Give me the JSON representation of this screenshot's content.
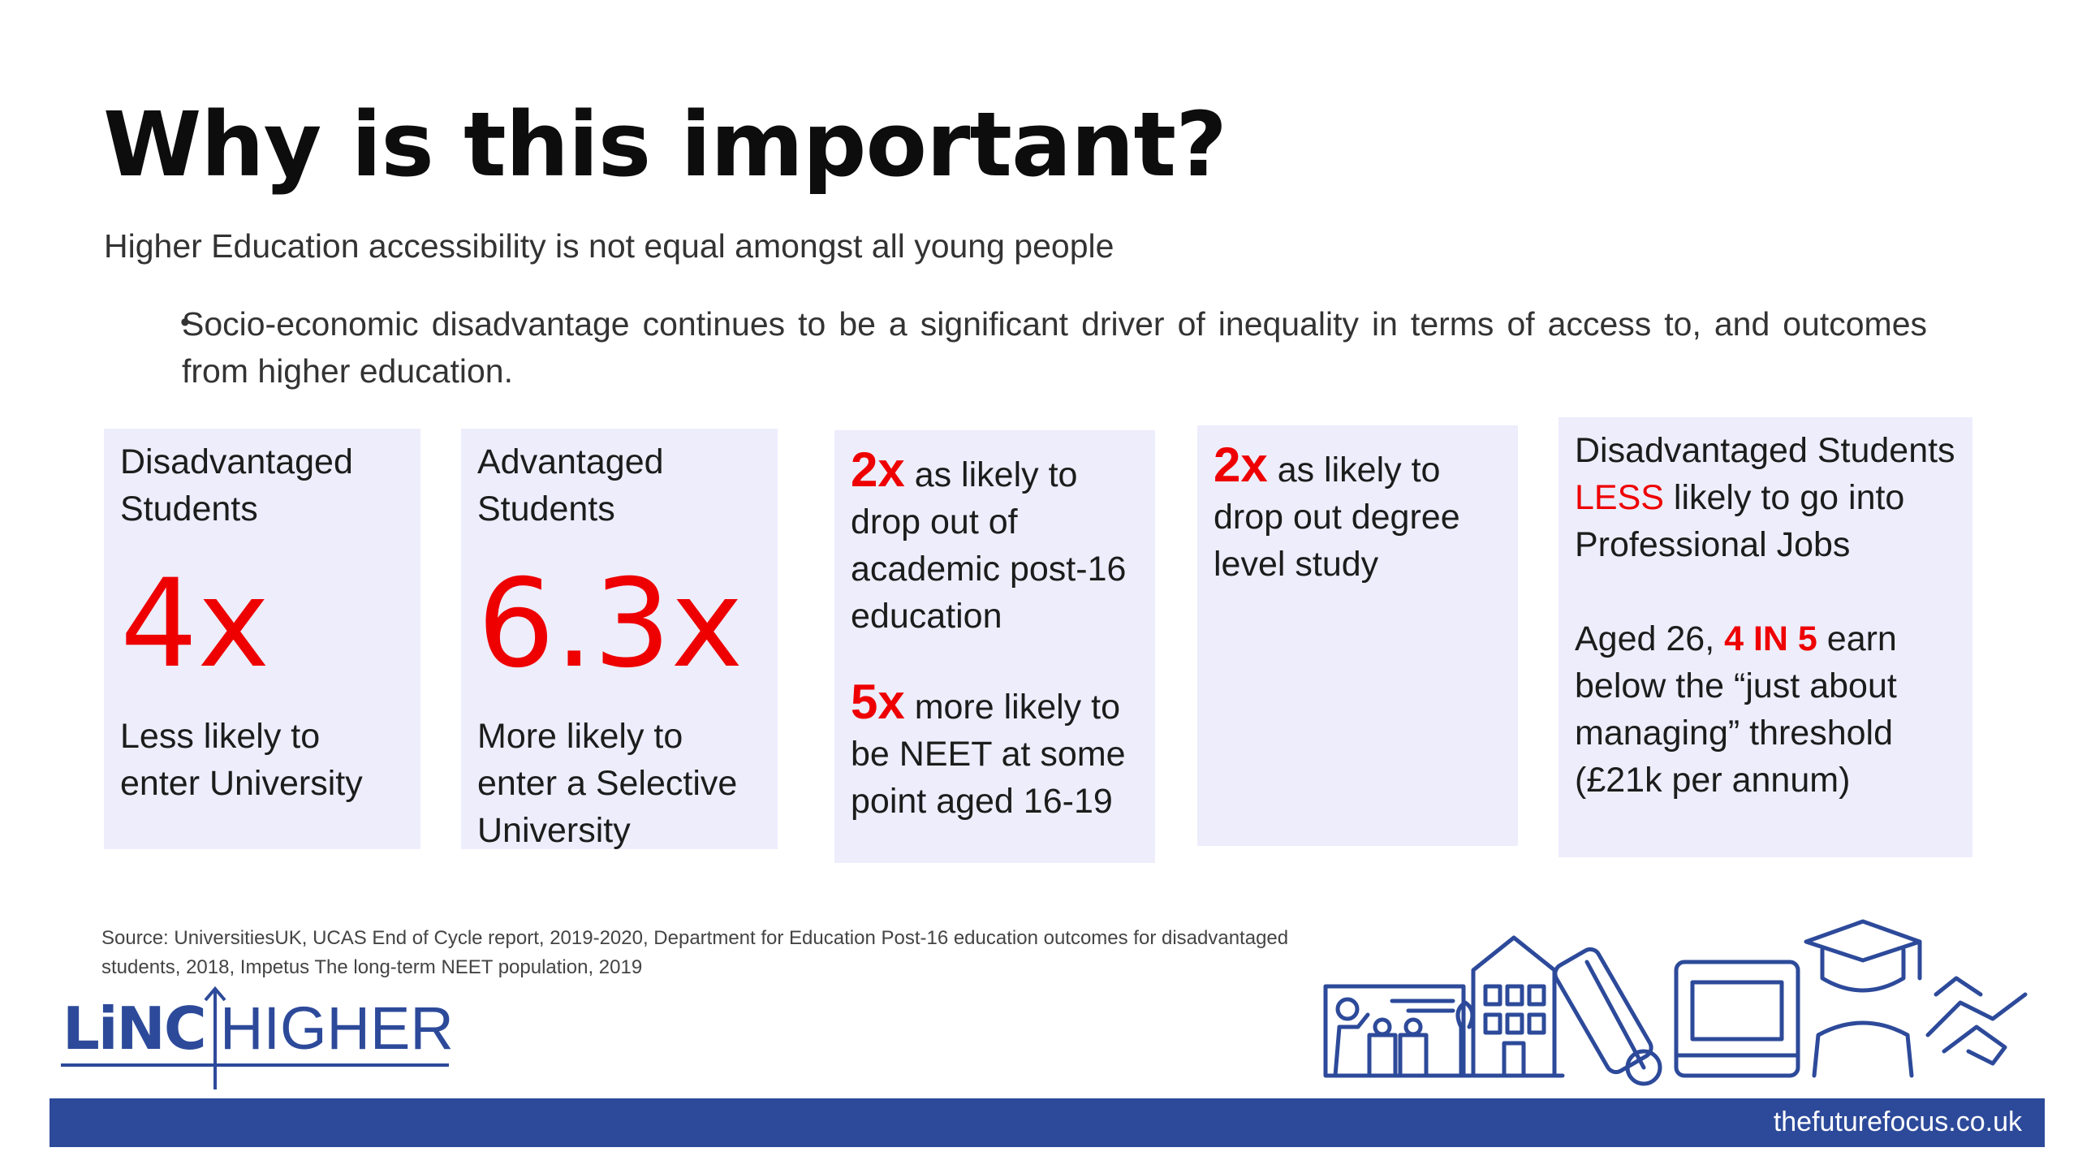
{
  "title": "Why is this important?",
  "subtitle": "Higher Education accessibility is not equal amongst all young people",
  "bullet": "Socio-economic disadvantage continues to be a significant driver of inequality in terms of access to, and outcomes from higher education.",
  "cards": [
    {
      "heading": "Disadvantaged Students",
      "figure": "4x",
      "caption": "Less likely to enter University"
    },
    {
      "heading": "Advantaged Students",
      "figure": "6.3x",
      "caption": "More likely to enter a Selective University"
    },
    {
      "stat1_mult": "2x",
      "stat1_text": " as likely to",
      "stat1_rest": "drop out of academic post-16 education",
      "stat2_mult": "5x",
      "stat2_text": " more likely to",
      "stat2_rest": "be NEET at some point aged 16-19"
    },
    {
      "mult": "2x",
      "text": " as likely to",
      "rest": "drop out degree level study"
    },
    {
      "line_a": "Disadvantaged Students ",
      "less": "LESS",
      "line_b": " likely to go into Professional Jobs",
      "aged": "Aged 26, ",
      "ratio": "4 IN 5",
      "aged_rest": " earn below the “just about managing” threshold (£21k per annum)"
    }
  ],
  "source": "Source: UniversitiesUK, UCAS End of Cycle report, 2019-2020, Department for Education Post-16 education outcomes for disadvantaged students, 2018,  Impetus The long-term NEET population, 2019",
  "logo": {
    "part1": "LiNC",
    "part2": "HIGHER"
  },
  "footer": {
    "url": "thefuturefocus.co.uk"
  },
  "colors": {
    "accent_red": "#ee0000",
    "card_bg": "#ededfc",
    "brand_blue": "#2d4a9a"
  }
}
